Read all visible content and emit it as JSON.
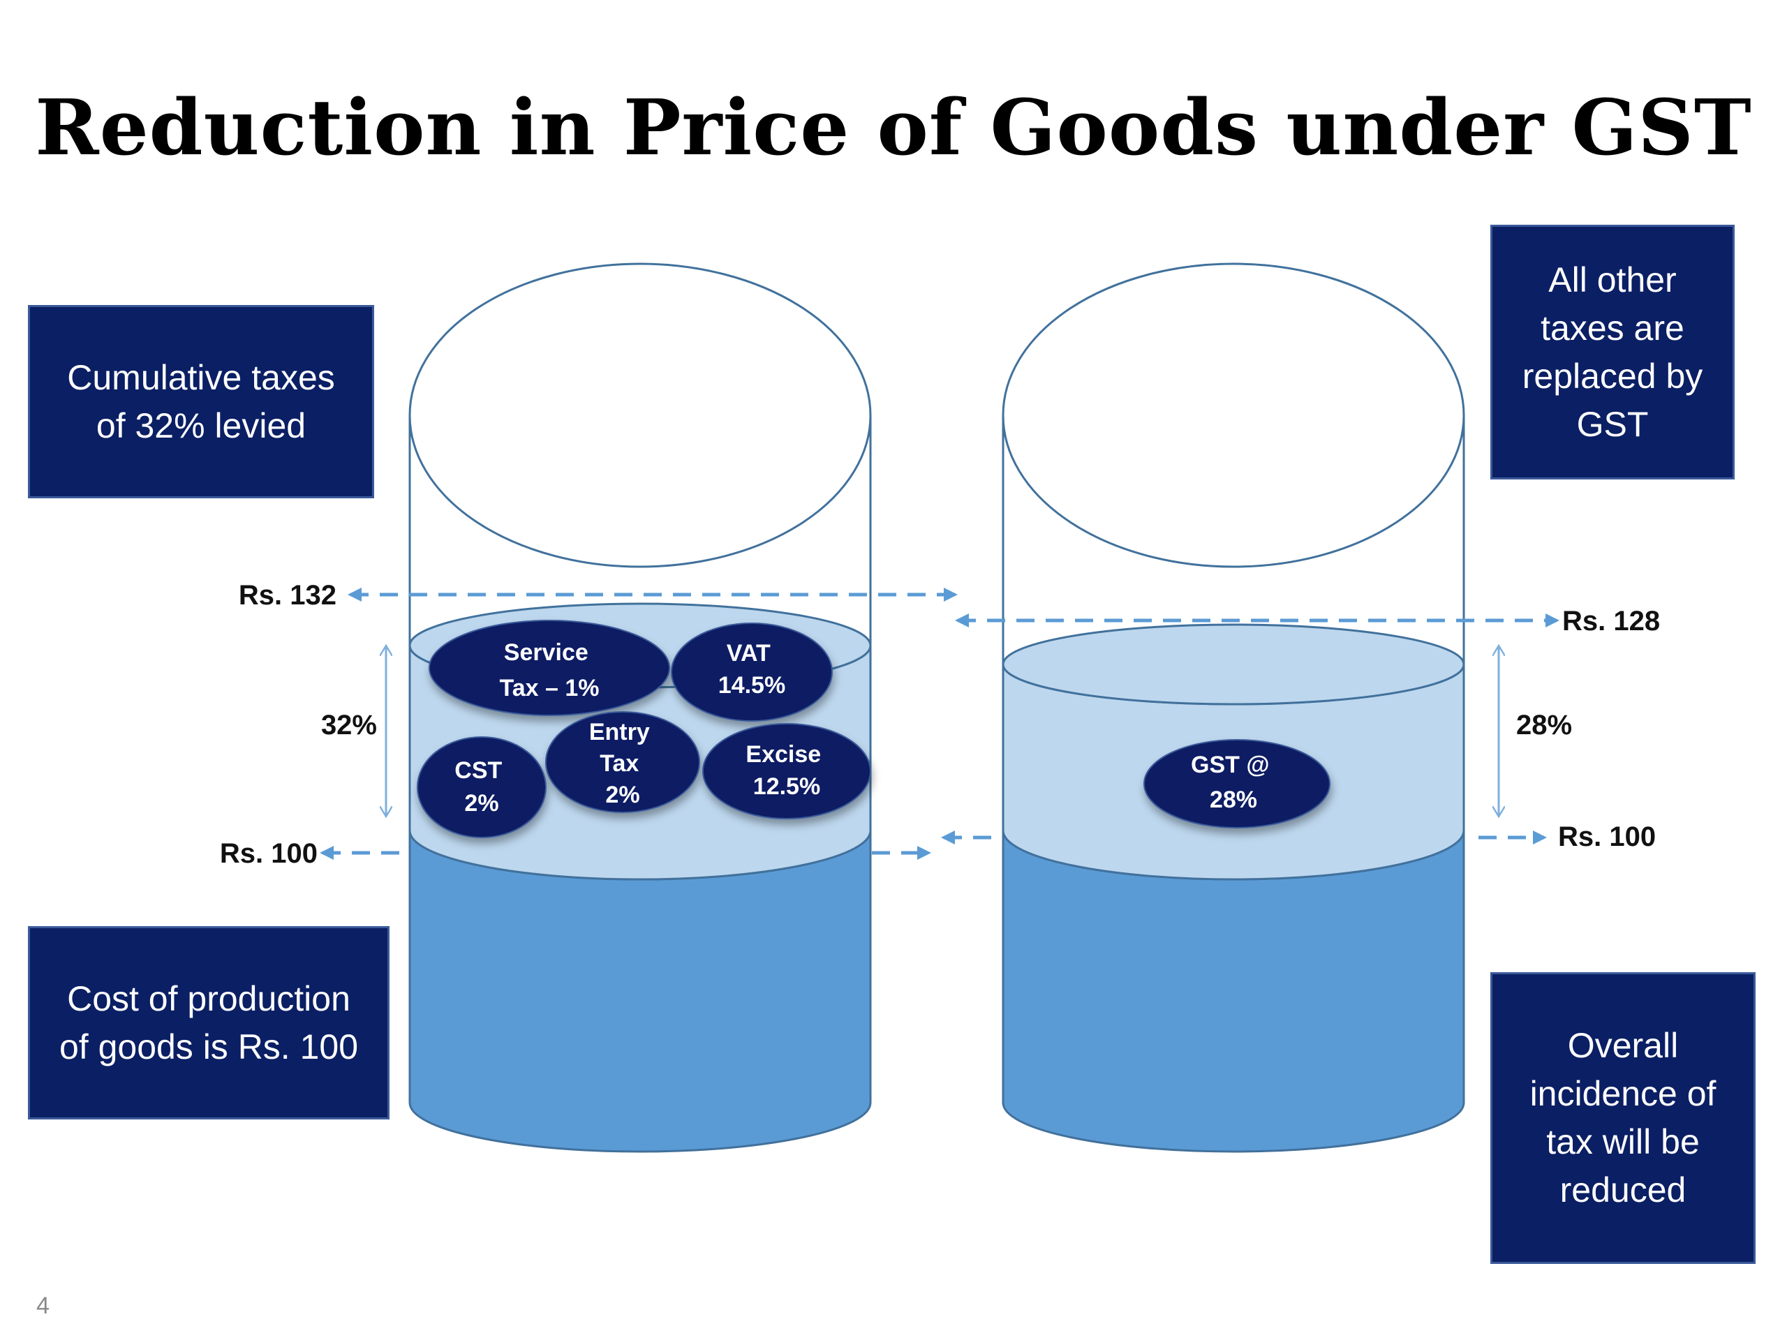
{
  "title": "Reduction in Price of Goods under GST",
  "callouts": {
    "cumulative": [
      "Cumulative taxes",
      "of 32% levied"
    ],
    "cost": [
      "Cost of production",
      "of goods is Rs. 100"
    ],
    "replaced": [
      "All other",
      "taxes are",
      "replaced by",
      "GST"
    ],
    "reduced": [
      "Overall",
      "incidence of",
      "tax will be",
      "reduced"
    ]
  },
  "left_cylinder": {
    "top_label": "Rs. 132",
    "bottom_label": "Rs. 100",
    "percent_label": "32%",
    "taxes": [
      {
        "lines": [
          "Service",
          "Tax – 1%"
        ]
      },
      {
        "lines": [
          "VAT",
          "14.5%"
        ]
      },
      {
        "lines": [
          "Entry",
          "Tax",
          "2%"
        ]
      },
      {
        "lines": [
          "Excise",
          "12.5%"
        ]
      },
      {
        "lines": [
          "CST",
          "2%"
        ]
      }
    ]
  },
  "right_cylinder": {
    "top_label": "Rs. 128",
    "bottom_label": "Rs. 100",
    "percent_label": "28%",
    "taxes": [
      {
        "lines": [
          "GST @",
          "28%"
        ]
      }
    ]
  },
  "colors": {
    "navy": "#0b1f64",
    "liquid_dark": "#5b9bd5",
    "liquid_light": "#bdd7ee",
    "outline": "#41719c",
    "arrow": "#5b9bd5"
  },
  "slide_number": "4"
}
